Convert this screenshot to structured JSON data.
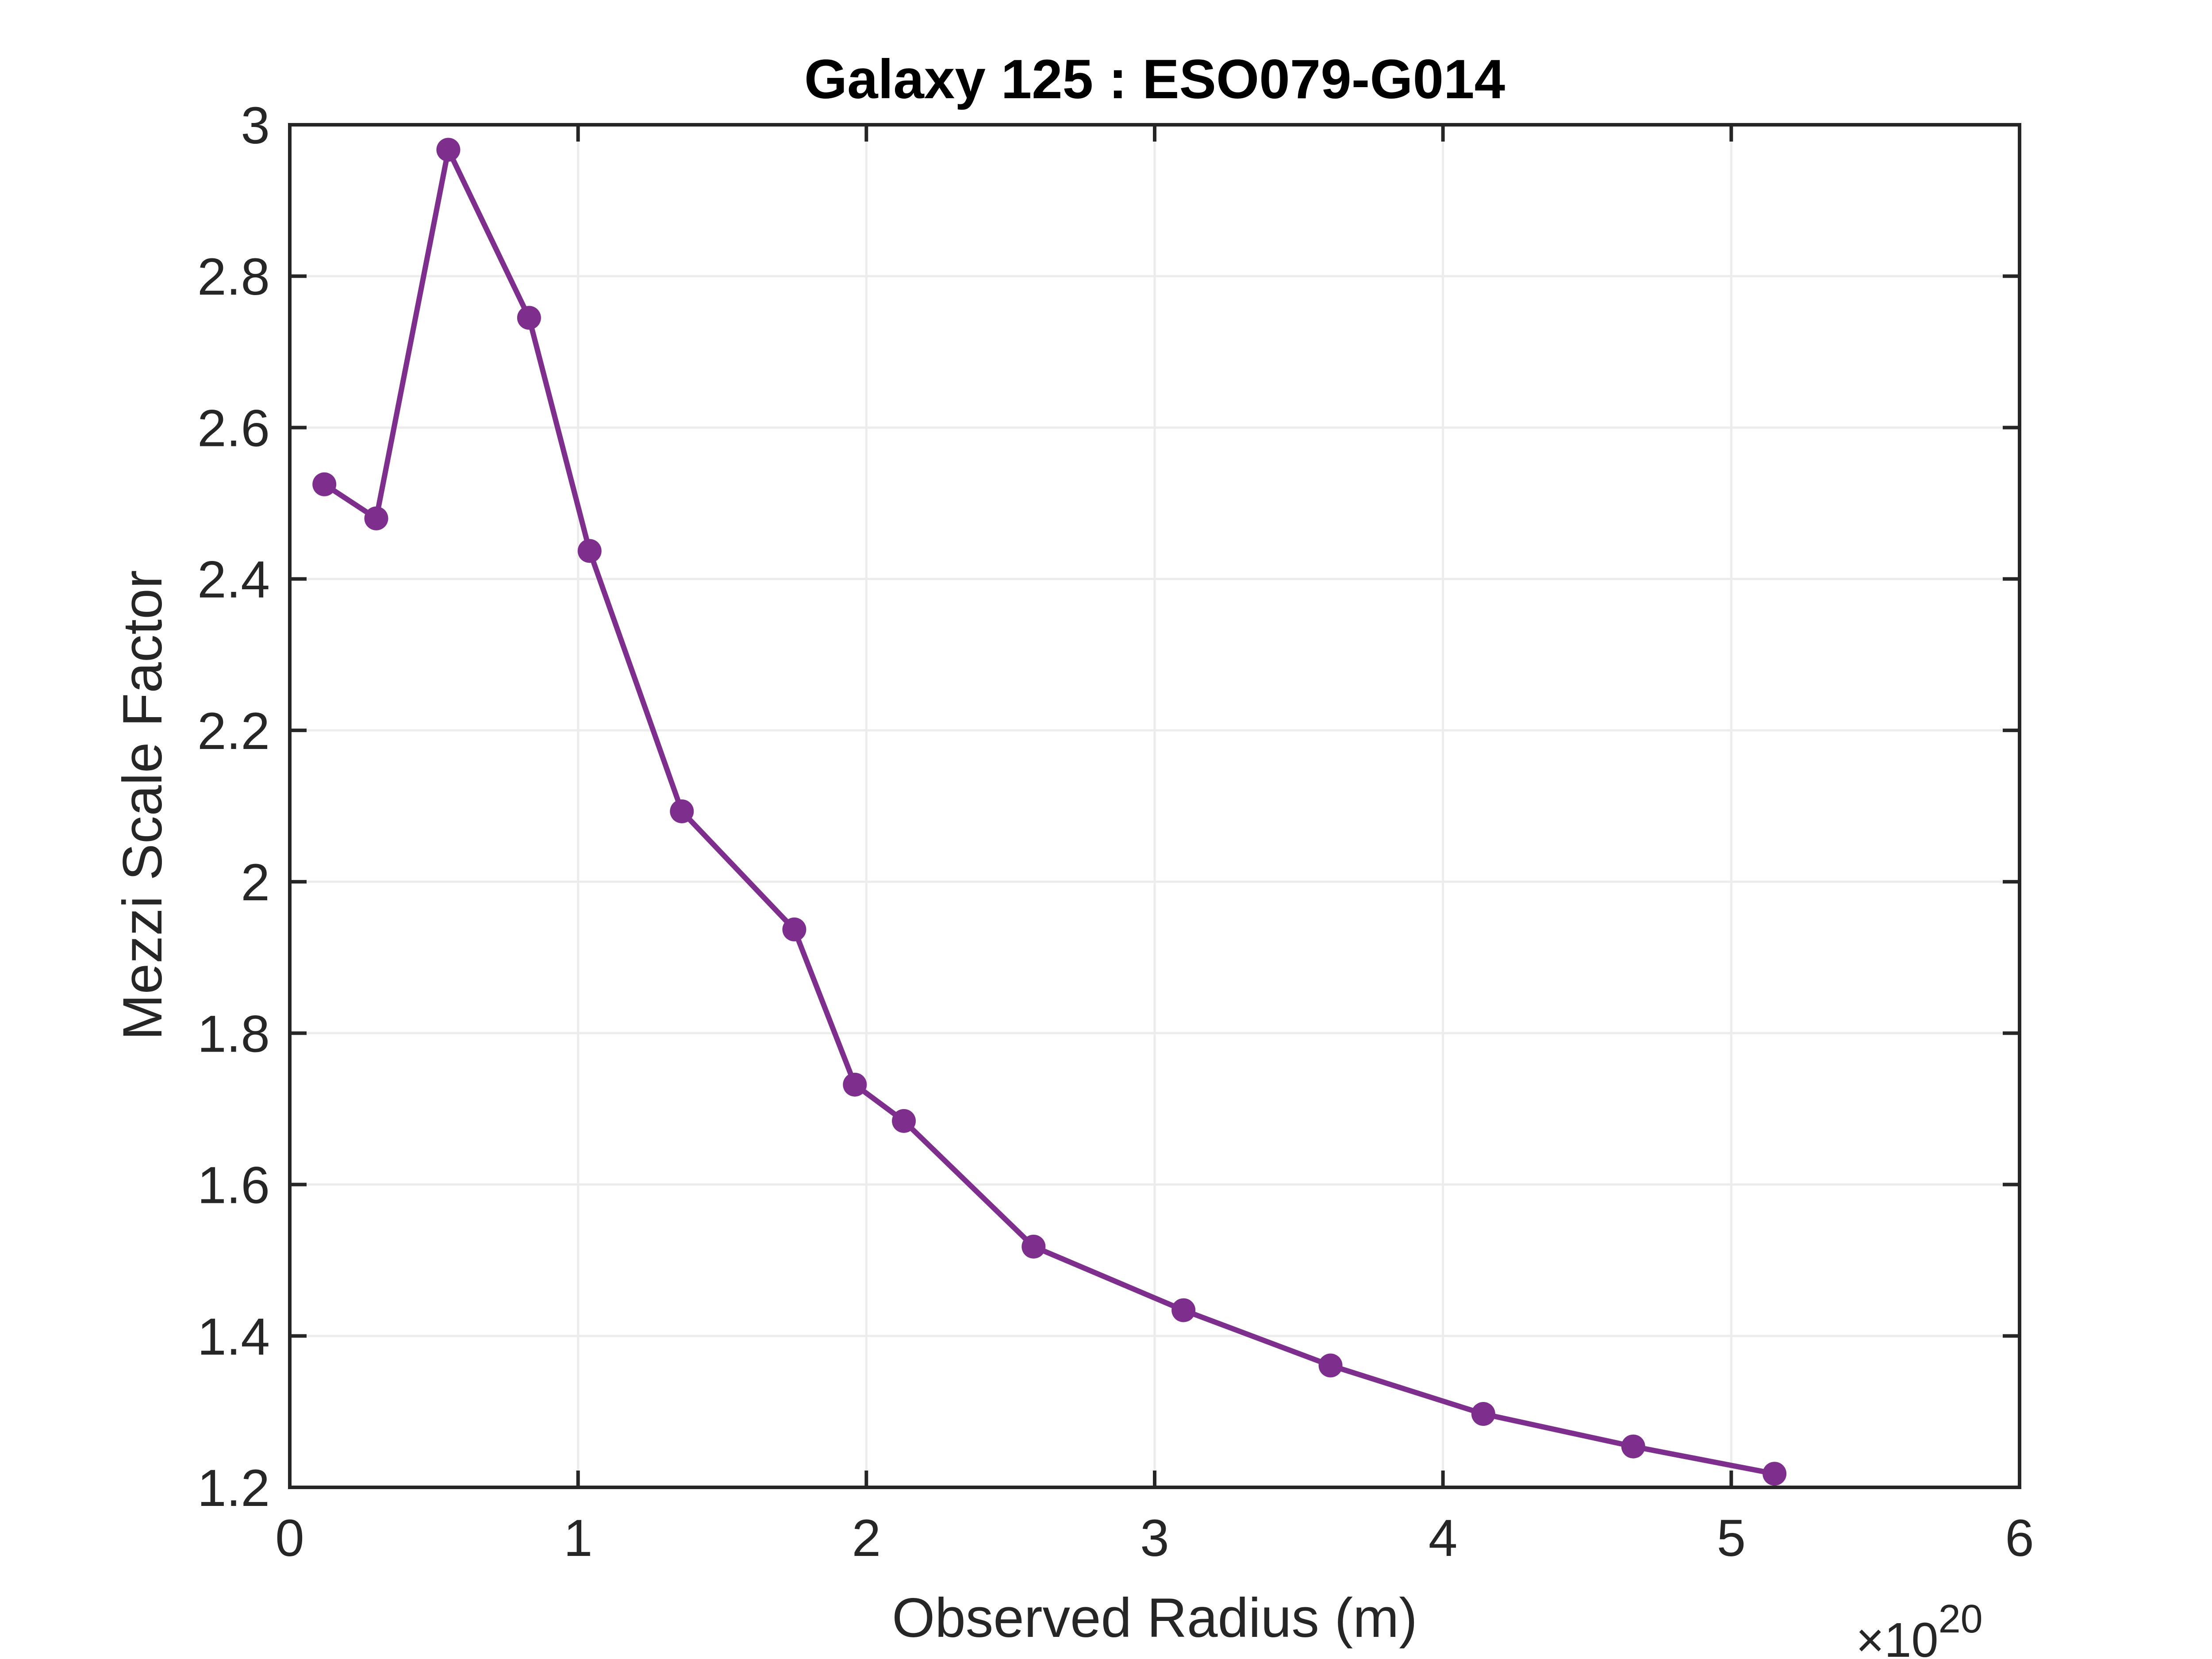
{
  "chart_data": {
    "type": "line",
    "title": "Galaxy 125 : ESO079-G014",
    "xlabel": "Observed Radius (m)",
    "ylabel": "Mezzi Scale Factor",
    "x_exponent_label": {
      "base": "×10",
      "exponent": "20"
    },
    "xlim": [
      0,
      6
    ],
    "ylim": [
      1.2,
      3.0
    ],
    "x_ticks": [
      0,
      1,
      2,
      3,
      4,
      5,
      6
    ],
    "x_tick_labels": [
      "0",
      "1",
      "2",
      "3",
      "4",
      "5",
      "6"
    ],
    "y_ticks": [
      1.2,
      1.4,
      1.6,
      1.8,
      2.0,
      2.2,
      2.4,
      2.6,
      2.8,
      3.0
    ],
    "y_tick_labels": [
      "1.2",
      "1.4",
      "1.6",
      "1.8",
      "2",
      "2.2",
      "2.4",
      "2.6",
      "2.8",
      "3"
    ],
    "grid": true,
    "series": [
      {
        "color": "#7e2f8e",
        "x": [
          0.12,
          0.3,
          0.55,
          0.83,
          1.04,
          1.36,
          1.75,
          1.96,
          2.13,
          2.58,
          3.1,
          3.61,
          4.14,
          4.66,
          5.15
        ],
        "y": [
          2.525,
          2.48,
          2.967,
          2.745,
          2.437,
          2.093,
          1.937,
          1.732,
          1.684,
          1.518,
          1.434,
          1.361,
          1.297,
          1.254,
          1.218
        ]
      }
    ]
  }
}
